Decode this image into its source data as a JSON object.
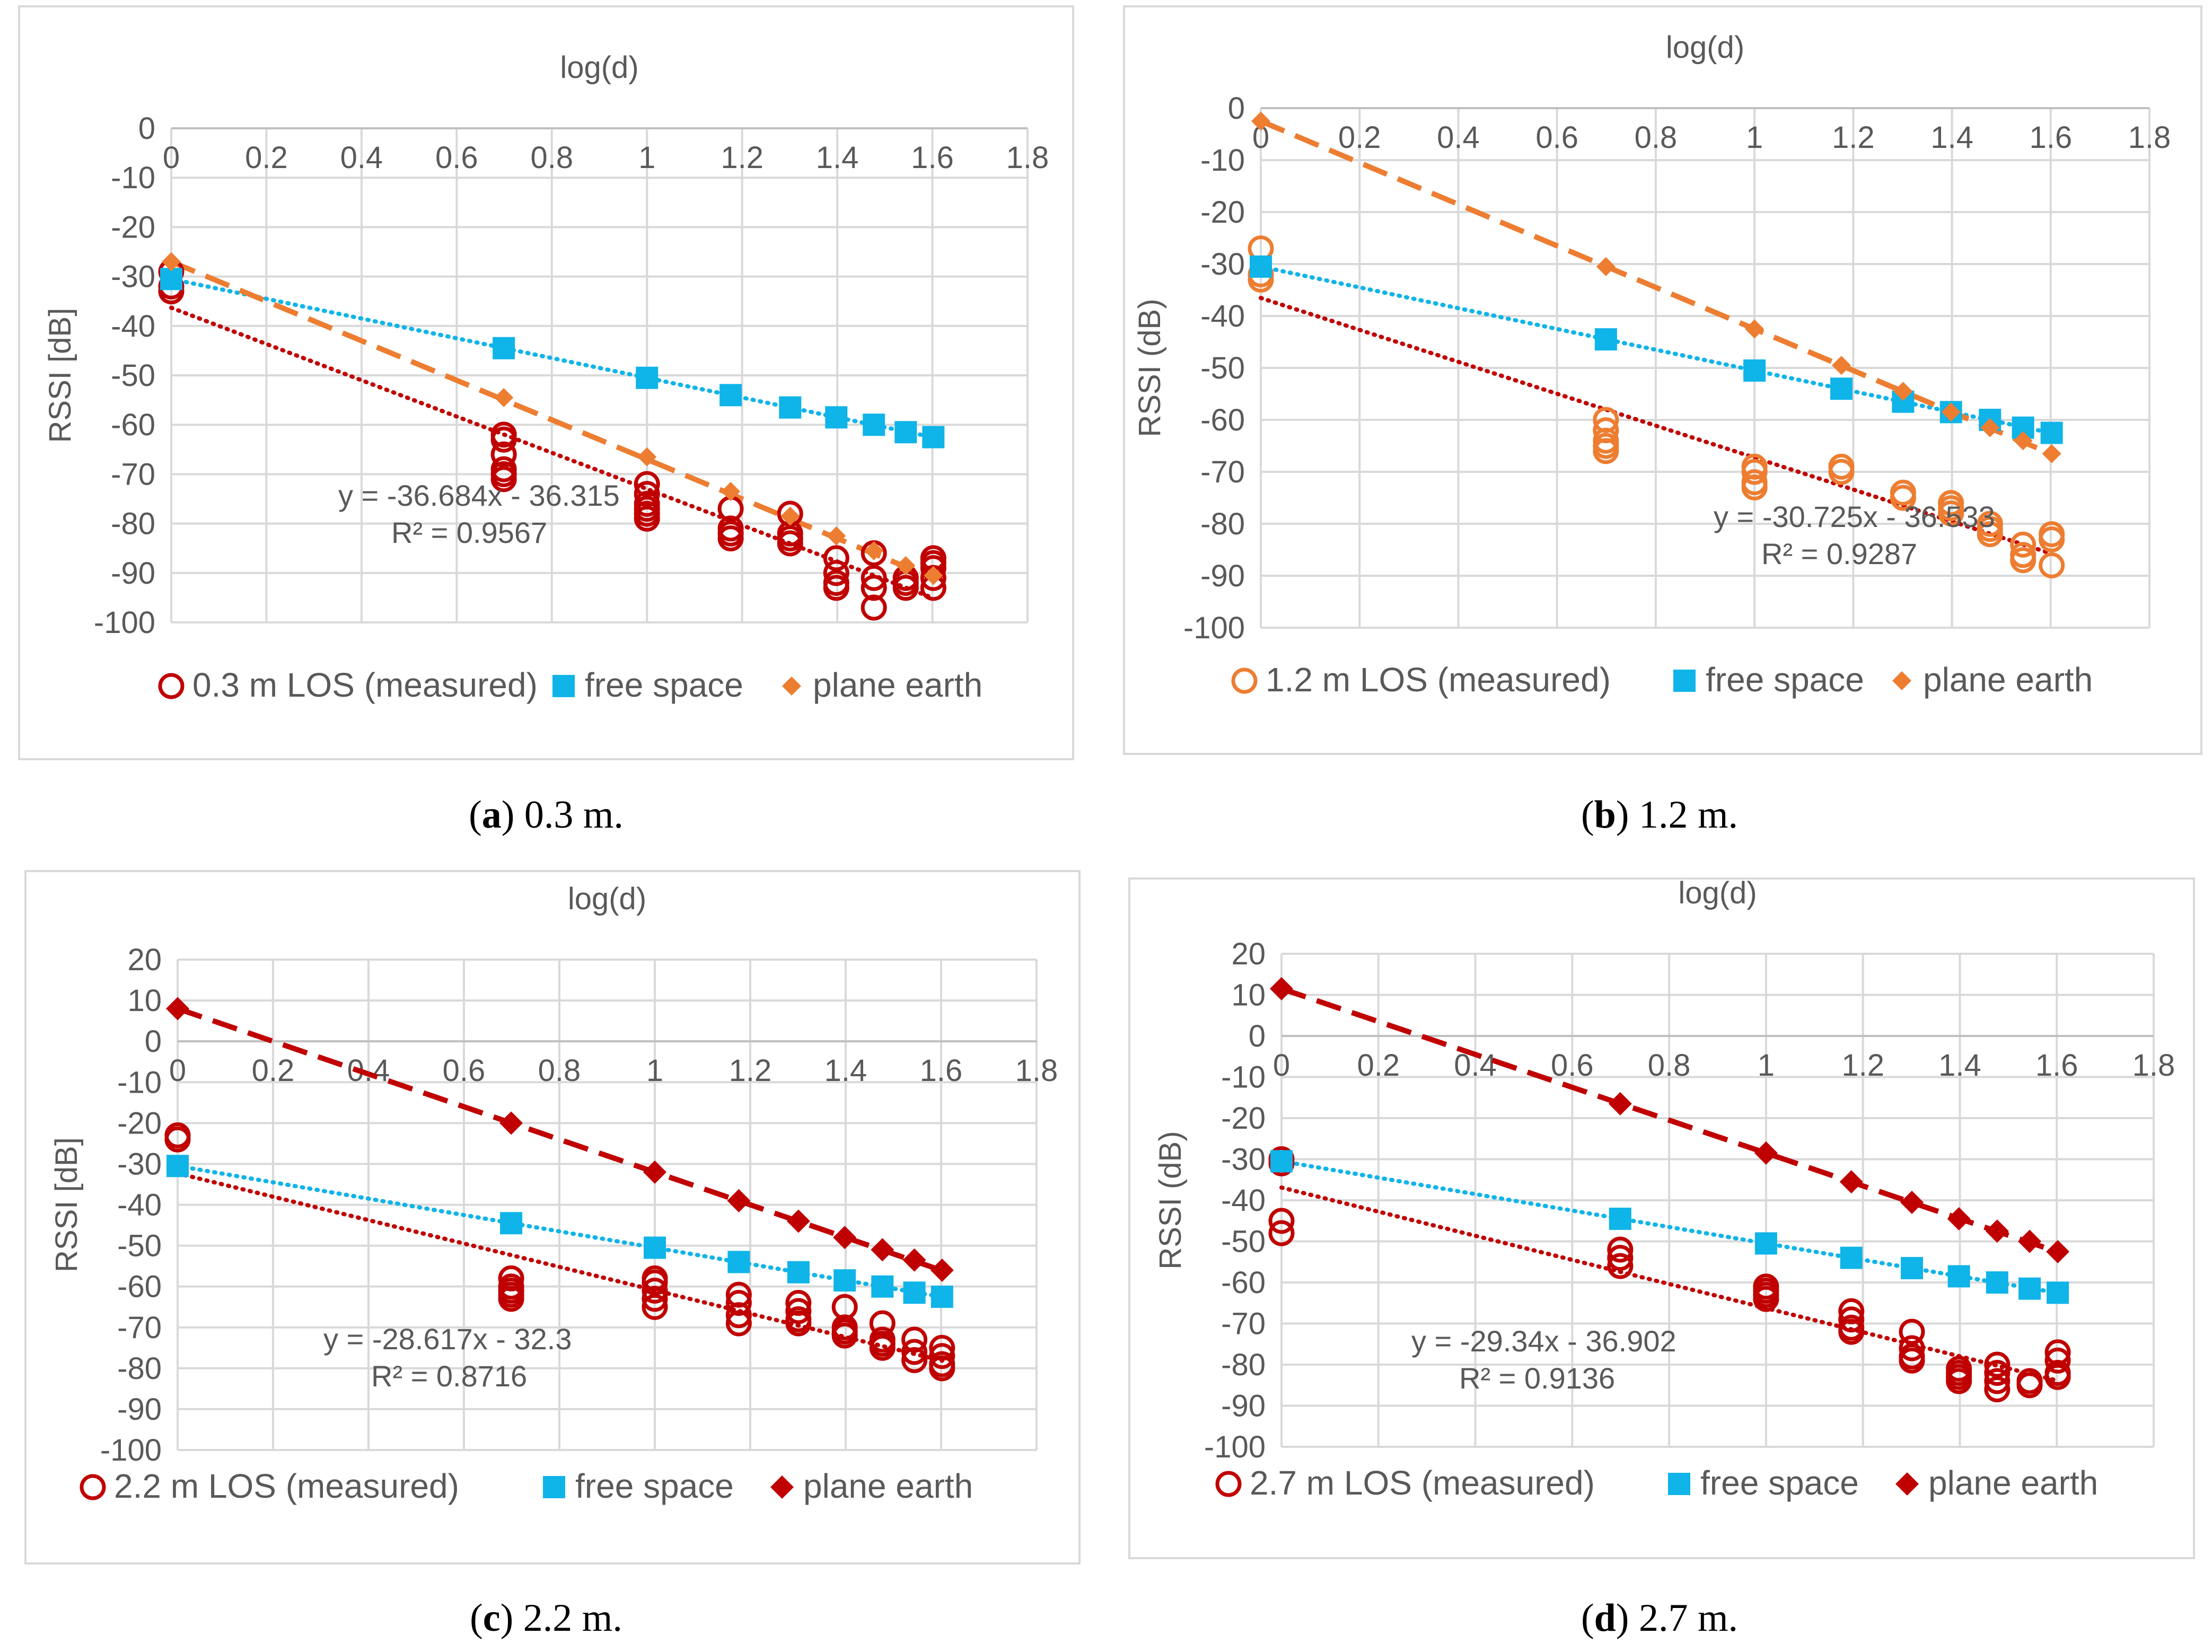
{
  "colors": {
    "measured_red": "#c00000",
    "measured_orange": "#ed7d31",
    "free_space": "#0fb4e8",
    "plane_earth_orange": "#ed7d31",
    "plane_earth_red": "#c00000",
    "grid": "#d9d9d9",
    "text": "#595959"
  },
  "captions": [
    {
      "letter": "a",
      "text": "0.3 m."
    },
    {
      "letter": "b",
      "text": "1.2 m."
    },
    {
      "letter": "c",
      "text": "2.2 m."
    },
    {
      "letter": "d",
      "text": "2.7 m."
    }
  ],
  "chart_data": [
    {
      "id": "a",
      "type": "scatter",
      "title": "log(d)",
      "xlabel": "log(d)",
      "ylabel": "RSSI [dB]",
      "xlim": [
        0,
        1.8
      ],
      "ylim": [
        -100,
        0
      ],
      "xticks": [
        0,
        0.2,
        0.4,
        0.6,
        0.8,
        1,
        1.2,
        1.4,
        1.6,
        1.8
      ],
      "yticks": [
        -100,
        -90,
        -80,
        -70,
        -60,
        -50,
        -40,
        -30,
        -20,
        -10,
        0
      ],
      "equation": "y = -36.684x - 36.315",
      "r2": "R² = 0.9567",
      "measured_color": "#c00000",
      "plane_earth_color": "#ed7d31",
      "plane_earth_marker": "diamond-small",
      "legend": [
        "0.3 m  LOS (measured)",
        "free space",
        "plane earth"
      ],
      "series": [
        {
          "name": "0.3 m  LOS (measured)",
          "x": [
            0,
            0,
            0,
            0.699,
            0.699,
            0.699,
            0.699,
            0.699,
            0.699,
            1,
            1,
            1,
            1,
            1,
            1,
            1.176,
            1.176,
            1.176,
            1.176,
            1.301,
            1.301,
            1.301,
            1.301,
            1.398,
            1.398,
            1.398,
            1.398,
            1.477,
            1.477,
            1.477,
            1.477,
            1.544,
            1.544,
            1.544,
            1.602,
            1.602,
            1.602,
            1.602,
            1.602
          ],
          "y": [
            -29,
            -32,
            -33,
            -62,
            -63,
            -66,
            -69,
            -70,
            -71,
            -72,
            -74,
            -76,
            -77,
            -78,
            -79,
            -77,
            -81,
            -82,
            -83,
            -78,
            -82,
            -83,
            -84,
            -87,
            -90,
            -92,
            -93,
            -86,
            -91,
            -93,
            -97,
            -91,
            -92,
            -93,
            -87,
            -88,
            -89,
            -91,
            -93
          ]
        },
        {
          "name": "free space",
          "x": [
            0,
            0.699,
            1,
            1.176,
            1.301,
            1.398,
            1.477,
            1.544,
            1.602
          ],
          "y": [
            -30.5,
            -44.5,
            -50.5,
            -54,
            -56.5,
            -58.5,
            -60,
            -61.5,
            -62.5
          ]
        },
        {
          "name": "plane earth",
          "x": [
            0,
            0.699,
            1,
            1.176,
            1.301,
            1.398,
            1.477,
            1.544,
            1.602
          ],
          "y": [
            -27,
            -54.5,
            -66.5,
            -73.5,
            -78.5,
            -82.5,
            -85.5,
            -88.5,
            -90.5
          ]
        }
      ],
      "trendlines": {
        "measured": {
          "slope": -36.684,
          "intercept": -36.315,
          "style": "dotted"
        },
        "free_space": {
          "slope": -20,
          "intercept": -30.5,
          "style": "dotted"
        },
        "plane_earth": {
          "slope": -40,
          "intercept": -27,
          "style": "dashed"
        }
      }
    },
    {
      "id": "b",
      "type": "scatter",
      "title": "log(d)",
      "xlabel": "log(d)",
      "ylabel": "RSSI (dB)",
      "xlim": [
        0,
        1.8
      ],
      "ylim": [
        -100,
        0
      ],
      "xticks": [
        0,
        0.2,
        0.4,
        0.6,
        0.8,
        1,
        1.2,
        1.4,
        1.6,
        1.8
      ],
      "yticks": [
        -100,
        -90,
        -80,
        -70,
        -60,
        -50,
        -40,
        -30,
        -20,
        -10,
        0
      ],
      "equation": "y = -30.725x - 36.533",
      "r2": "R² = 0.9287",
      "measured_color": "#ed7d31",
      "plane_earth_color": "#ed7d31",
      "plane_earth_marker": "diamond-small",
      "legend": [
        "1.2 m LOS (measured)",
        "free space",
        "plane earth"
      ],
      "series": [
        {
          "name": "1.2 m LOS (measured)",
          "x": [
            0,
            0,
            0,
            0.699,
            0.699,
            0.699,
            0.699,
            0.699,
            1,
            1,
            1,
            1,
            1.176,
            1.176,
            1.301,
            1.301,
            1.398,
            1.398,
            1.398,
            1.477,
            1.477,
            1.477,
            1.544,
            1.544,
            1.544,
            1.602,
            1.602,
            1.602
          ],
          "y": [
            -27,
            -32,
            -33,
            -60,
            -62,
            -64,
            -65,
            -66,
            -69,
            -70,
            -72,
            -73,
            -69,
            -70,
            -74,
            -75,
            -76,
            -77,
            -78,
            -80,
            -81,
            -82,
            -84,
            -86,
            -87,
            -82,
            -83,
            -88
          ]
        },
        {
          "name": "free space",
          "x": [
            0,
            0.699,
            1,
            1.176,
            1.301,
            1.398,
            1.477,
            1.544,
            1.602
          ],
          "y": [
            -30.5,
            -44.5,
            -50.5,
            -54,
            -56.5,
            -58.5,
            -60,
            -61.5,
            -62.5
          ]
        },
        {
          "name": "plane earth",
          "x": [
            0,
            0.699,
            1,
            1.176,
            1.301,
            1.398,
            1.477,
            1.544,
            1.602
          ],
          "y": [
            -2.5,
            -30.5,
            -42.5,
            -49.5,
            -54.5,
            -58.5,
            -61.5,
            -64,
            -66.5
          ]
        }
      ],
      "trendlines": {
        "measured": {
          "slope": -30.725,
          "intercept": -36.533,
          "style": "dotted"
        },
        "free_space": {
          "slope": -20,
          "intercept": -30.5,
          "style": "dotted"
        },
        "plane_earth": {
          "slope": -40,
          "intercept": -2.5,
          "style": "dashed"
        }
      }
    },
    {
      "id": "c",
      "type": "scatter",
      "title": "log(d)",
      "xlabel": "log(d)",
      "ylabel": "RSSI [dB]",
      "xlim": [
        0,
        1.8
      ],
      "ylim": [
        -100,
        20
      ],
      "xticks": [
        0,
        0.2,
        0.4,
        0.6,
        0.8,
        1,
        1.2,
        1.4,
        1.6,
        1.8
      ],
      "yticks": [
        -100,
        -90,
        -80,
        -70,
        -60,
        -50,
        -40,
        -30,
        -20,
        -10,
        0,
        10,
        20
      ],
      "equation": "y = -28.617x - 32.3",
      "r2": "R² = 0.8716",
      "measured_color": "#c00000",
      "plane_earth_color": "#c00000",
      "plane_earth_marker": "diamond",
      "legend": [
        "2.2 m LOS (measured)",
        "free space",
        "plane earth"
      ],
      "series": [
        {
          "name": "2.2 m LOS (measured)",
          "x": [
            0,
            0,
            0.699,
            0.699,
            0.699,
            0.699,
            0.699,
            1,
            1,
            1,
            1,
            1,
            1.176,
            1.176,
            1.176,
            1.176,
            1.301,
            1.301,
            1.301,
            1.301,
            1.398,
            1.398,
            1.398,
            1.398,
            1.477,
            1.477,
            1.477,
            1.477,
            1.544,
            1.544,
            1.544,
            1.602,
            1.602,
            1.602,
            1.602
          ],
          "y": [
            -23,
            -24,
            -58,
            -60,
            -61,
            -62,
            -63,
            -58,
            -59,
            -61,
            -63,
            -65,
            -62,
            -64,
            -67,
            -69,
            -64,
            -66,
            -68,
            -69,
            -65,
            -70,
            -71,
            -72,
            -69,
            -73,
            -74,
            -75,
            -73,
            -76,
            -78,
            -75,
            -77,
            -79,
            -80
          ]
        },
        {
          "name": "free space",
          "x": [
            0,
            0.699,
            1,
            1.176,
            1.301,
            1.398,
            1.477,
            1.544,
            1.602
          ],
          "y": [
            -30.5,
            -44.5,
            -50.5,
            -54,
            -56.5,
            -58.5,
            -60,
            -61.5,
            -62.5
          ]
        },
        {
          "name": "plane earth",
          "x": [
            0,
            0.699,
            1,
            1.176,
            1.301,
            1.398,
            1.477,
            1.544,
            1.602
          ],
          "y": [
            8,
            -20,
            -32,
            -39,
            -44,
            -48,
            -51,
            -53.5,
            -56
          ]
        }
      ],
      "trendlines": {
        "measured": {
          "slope": -28.617,
          "intercept": -32.3,
          "style": "dotted"
        },
        "free_space": {
          "slope": -20,
          "intercept": -30.5,
          "style": "dotted"
        },
        "plane_earth": {
          "slope": -40,
          "intercept": 8,
          "style": "dashed"
        }
      }
    },
    {
      "id": "d",
      "type": "scatter",
      "title": "log(d)",
      "xlabel": "log(d)",
      "ylabel": "RSSI (dB)",
      "xlim": [
        0,
        1.8
      ],
      "ylim": [
        -100,
        20
      ],
      "xticks": [
        0,
        0.2,
        0.4,
        0.6,
        0.8,
        1,
        1.2,
        1.4,
        1.6,
        1.8
      ],
      "yticks": [
        -100,
        -90,
        -80,
        -70,
        -60,
        -50,
        -40,
        -30,
        -20,
        -10,
        0,
        10,
        20
      ],
      "equation": "y = -29.34x - 36.902",
      "r2": "R² = 0.9136",
      "measured_color": "#c00000",
      "plane_earth_color": "#c00000",
      "plane_earth_marker": "diamond",
      "legend": [
        "2.7 m LOS (measured)",
        "free space",
        "plane earth"
      ],
      "series": [
        {
          "name": "2.7 m LOS (measured)",
          "x": [
            0,
            0,
            0,
            0,
            0.699,
            0.699,
            0.699,
            1,
            1,
            1,
            1,
            1.176,
            1.176,
            1.176,
            1.176,
            1.301,
            1.301,
            1.301,
            1.301,
            1.398,
            1.398,
            1.398,
            1.398,
            1.477,
            1.477,
            1.477,
            1.477,
            1.544,
            1.544,
            1.602,
            1.602,
            1.602,
            1.602
          ],
          "y": [
            -30,
            -31,
            -45,
            -48,
            -52,
            -54,
            -56,
            -61,
            -62,
            -63,
            -64,
            -67,
            -69,
            -71,
            -72,
            -72,
            -76,
            -78,
            -79,
            -81,
            -82,
            -83,
            -84,
            -80,
            -82,
            -84,
            -86,
            -84,
            -85,
            -77,
            -79,
            -82,
            -83
          ]
        },
        {
          "name": "free space",
          "x": [
            0,
            0.699,
            1,
            1.176,
            1.301,
            1.398,
            1.477,
            1.544,
            1.602
          ],
          "y": [
            -30.5,
            -44.5,
            -50.5,
            -54,
            -56.5,
            -58.5,
            -60,
            -61.5,
            -62.5
          ]
        },
        {
          "name": "plane earth",
          "x": [
            0,
            0.699,
            1,
            1.176,
            1.301,
            1.398,
            1.477,
            1.544,
            1.602
          ],
          "y": [
            11.5,
            -16.5,
            -28.5,
            -35.5,
            -40.5,
            -44.5,
            -47.5,
            -50,
            -52.5
          ]
        }
      ],
      "trendlines": {
        "measured": {
          "slope": -29.34,
          "intercept": -36.902,
          "style": "dotted"
        },
        "free_space": {
          "slope": -20,
          "intercept": -30.5,
          "style": "dotted"
        },
        "plane_earth": {
          "slope": -40,
          "intercept": 11.5,
          "style": "dashed"
        }
      }
    }
  ]
}
